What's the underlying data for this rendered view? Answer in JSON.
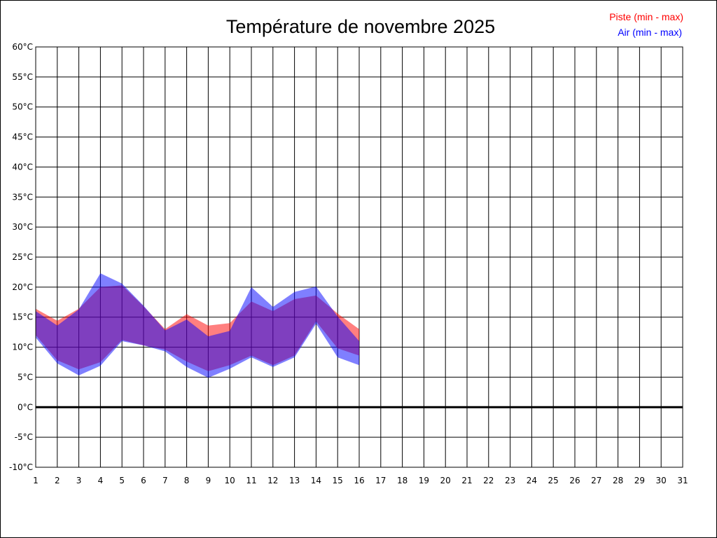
{
  "chart_data": {
    "type": "area",
    "title": "Température de novembre 2025",
    "x": [
      1,
      2,
      3,
      4,
      5,
      6,
      7,
      8,
      9,
      10,
      11,
      12,
      13,
      14,
      15,
      16
    ],
    "xticks": [
      1,
      2,
      3,
      4,
      5,
      6,
      7,
      8,
      9,
      10,
      11,
      12,
      13,
      14,
      15,
      16,
      17,
      18,
      19,
      20,
      21,
      22,
      23,
      24,
      25,
      26,
      27,
      28,
      29,
      30,
      31
    ],
    "xlim": [
      1,
      31
    ],
    "ylim": [
      -10,
      60
    ],
    "ystep": 5,
    "yunit": "°C",
    "grid": true,
    "legend_position": "top-right",
    "zero_line": true,
    "series": [
      {
        "name": "Piste (min - max)",
        "color": "#ff0000",
        "fill": "#ff0000",
        "min": [
          12.0,
          7.8,
          6.3,
          7.5,
          11.2,
          10.3,
          9.6,
          7.6,
          6.0,
          7.0,
          8.6,
          7.0,
          8.6,
          14.3,
          9.8,
          8.6
        ],
        "max": [
          16.4,
          14.4,
          16.4,
          20.0,
          20.3,
          16.8,
          13.0,
          15.5,
          13.6,
          14.0,
          17.6,
          16.0,
          18.0,
          18.6,
          15.6,
          13.0
        ]
      },
      {
        "name": "Air (min - max)",
        "color": "#0000ff",
        "fill": "#0000ff",
        "min": [
          11.6,
          7.3,
          5.3,
          6.9,
          11.0,
          10.3,
          9.3,
          6.7,
          4.9,
          6.4,
          8.3,
          6.7,
          8.3,
          13.9,
          8.3,
          7.0
        ],
        "max": [
          16.0,
          13.6,
          16.3,
          22.3,
          20.6,
          16.9,
          12.8,
          14.6,
          11.8,
          12.7,
          20.0,
          16.7,
          19.2,
          20.1,
          15.1,
          11.0
        ]
      }
    ]
  }
}
